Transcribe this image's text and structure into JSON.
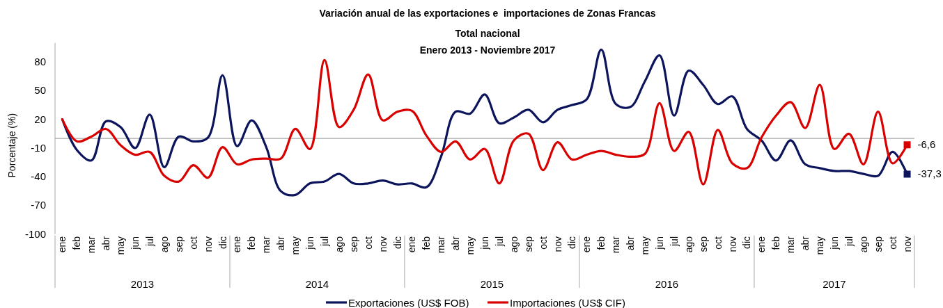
{
  "chart_data": {
    "type": "line",
    "title": "Variación anual de las exportaciones e  importaciones de Zonas Francas",
    "subtitle": "Total nacional\nEnero 2013 - Noviembre 2017",
    "ylabel": "Porcentaje (%)",
    "categories": [
      "ene",
      "feb",
      "mar",
      "abr",
      "may",
      "jun",
      "jul",
      "ago",
      "sep",
      "oct",
      "nov",
      "dic",
      "ene",
      "feb",
      "mar",
      "abr",
      "may",
      "jun",
      "jul",
      "ago",
      "sep",
      "oct",
      "nov",
      "dic",
      "ene",
      "feb",
      "mar",
      "abr",
      "may",
      "jun",
      "jul",
      "ago",
      "sep",
      "oct",
      "nov",
      "dic",
      "ene",
      "feb",
      "mar",
      "abr",
      "may",
      "jun",
      "jul",
      "ago",
      "sep",
      "oct",
      "nov",
      "dic",
      "ene",
      "feb",
      "mar",
      "abr",
      "may",
      "jun",
      "jul",
      "ago",
      "sep",
      "oct",
      "nov"
    ],
    "series": [
      {
        "name": "Exportaciones (US$ FOB)",
        "color": "#0c145c",
        "values": [
          20,
          -12,
          -23,
          18,
          12,
          -10,
          25,
          -30,
          2,
          -3,
          1,
          66,
          -8,
          19,
          -9,
          -55,
          -59,
          -47,
          -45,
          -37,
          -47,
          -47,
          -44,
          -48,
          -47,
          -51,
          -19,
          28,
          26,
          46,
          16,
          22,
          30,
          17,
          30,
          35,
          41,
          93,
          36,
          33,
          60,
          87,
          24,
          71,
          56,
          36,
          44,
          10,
          -2,
          -23,
          -2,
          -27,
          -31,
          -34,
          -34,
          -37,
          -39,
          -14,
          -37.3
        ],
        "value_labels": [
          null,
          null,
          null,
          null,
          null,
          null,
          null,
          null,
          null,
          null,
          null,
          null,
          null,
          null,
          null,
          null,
          null,
          null,
          null,
          null,
          null,
          null,
          null,
          null,
          null,
          null,
          null,
          null,
          null,
          null,
          null,
          null,
          null,
          null,
          null,
          null,
          null,
          null,
          null,
          null,
          null,
          null,
          null,
          null,
          null,
          null,
          null,
          null,
          null,
          null,
          null,
          null,
          null,
          null,
          null,
          null,
          null,
          null,
          "-37,3"
        ]
      },
      {
        "name": "Importaciones  (US$ CIF)",
        "color": "#d90000",
        "values": [
          20,
          -3,
          2,
          10,
          -7,
          -17,
          -14,
          -39,
          -45,
          -28,
          -41,
          -9,
          -27,
          -22,
          -21,
          -21,
          10,
          -11,
          82,
          12,
          30,
          67,
          19,
          28,
          29,
          3,
          -14,
          -3,
          -22,
          -11,
          -47,
          -2,
          5,
          -33,
          -4,
          -22,
          -17,
          -13,
          -17,
          -19,
          -16,
          37,
          -13,
          7,
          -48,
          9,
          -26,
          -31,
          1,
          24,
          38,
          11,
          56,
          -11,
          5,
          -27,
          28,
          -26,
          -6.6
        ],
        "value_labels": [
          null,
          null,
          null,
          null,
          null,
          null,
          null,
          null,
          null,
          null,
          null,
          null,
          null,
          null,
          null,
          null,
          null,
          null,
          null,
          null,
          null,
          null,
          null,
          null,
          null,
          null,
          null,
          null,
          null,
          null,
          null,
          null,
          null,
          null,
          null,
          null,
          null,
          null,
          null,
          null,
          null,
          null,
          null,
          null,
          null,
          null,
          null,
          null,
          null,
          null,
          null,
          null,
          null,
          null,
          null,
          null,
          null,
          null,
          "-6,6"
        ]
      }
    ],
    "ylim": [
      -100,
      100
    ],
    "yticks": [
      -100,
      -70,
      -40,
      -10,
      20,
      50,
      80
    ],
    "ref_lines": [
      {
        "axis": "y",
        "value": 0,
        "color": "#a6a6a6"
      }
    ],
    "annotations": [
      "2013",
      "2014",
      "2015",
      "2016",
      "2017"
    ],
    "legend": "bottom",
    "grid": false
  }
}
